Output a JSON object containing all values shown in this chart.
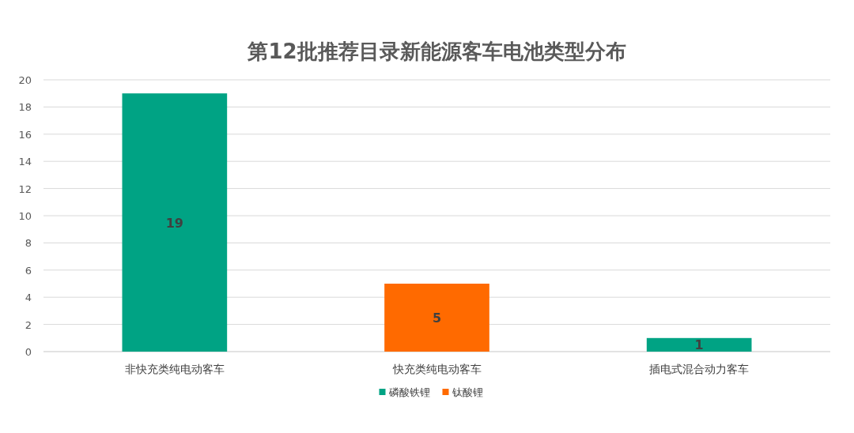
{
  "chart_data": {
    "type": "bar",
    "title": "第12批推荐目录新能源客车电池类型分布",
    "categories": [
      "非快充类纯电动客车",
      "快充类纯电动客车",
      "插电式混合动力客车"
    ],
    "series": [
      {
        "name": "磷酸铁锂",
        "color": "#00a384",
        "values": [
          19,
          null,
          1
        ]
      },
      {
        "name": "钛酸锂",
        "color": "#ff6a00",
        "values": [
          null,
          5,
          null
        ]
      }
    ],
    "stacked": true,
    "ylim": [
      0,
      20
    ],
    "yticks": [
      0,
      2,
      4,
      6,
      8,
      10,
      12,
      14,
      16,
      18,
      20
    ],
    "grid": "y",
    "legend": "bottom",
    "data_labels": true
  }
}
